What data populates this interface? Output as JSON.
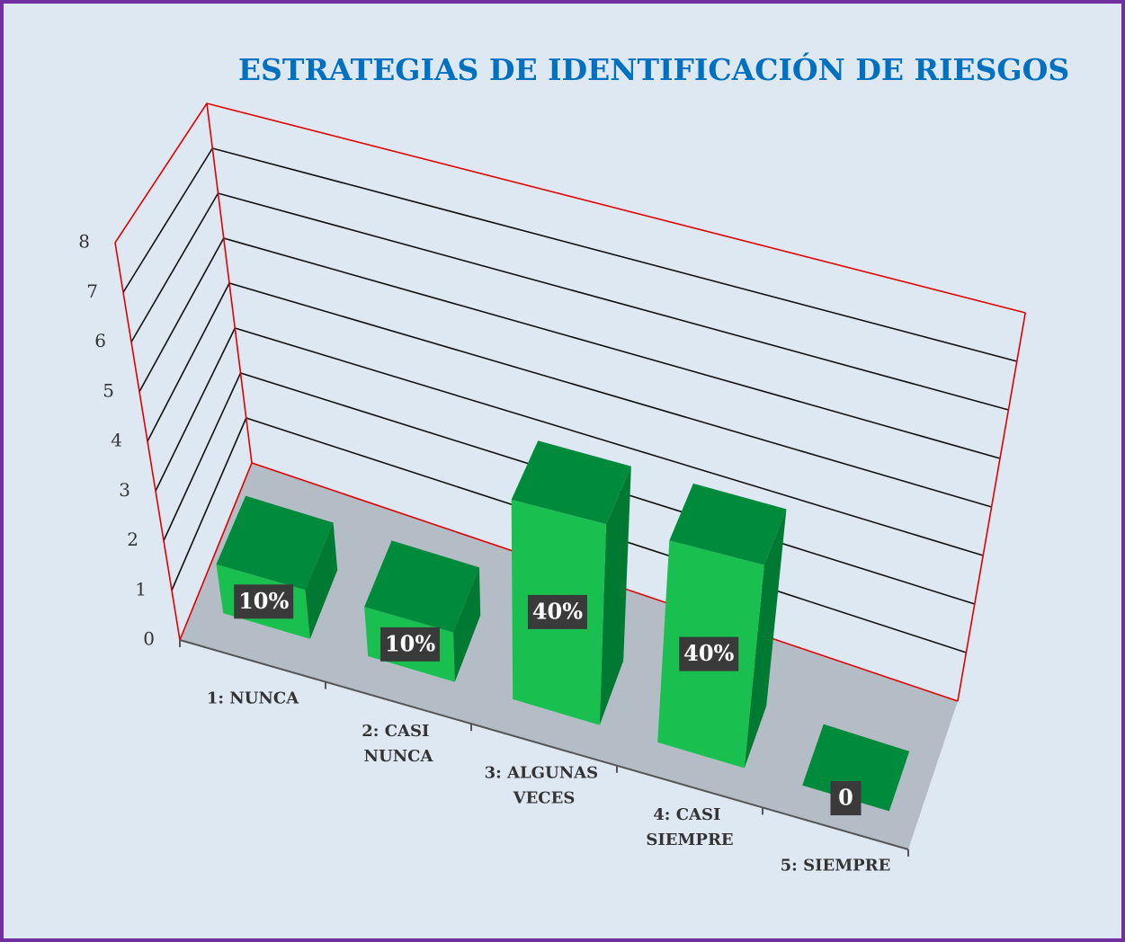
{
  "chart_data": {
    "type": "bar3d",
    "title": "ESTRATEGIAS DE IDENTIFICACIÓN DE RIESGOS",
    "categories": [
      "1: NUNCA",
      "2: CASI NUNCA",
      "3: ALGUNAS VECES",
      "4: CASI SIEMPRE",
      "5: SIEMPRE"
    ],
    "values": [
      1,
      1,
      4,
      4,
      0
    ],
    "value_labels": [
      "10%",
      "10%",
      "40%",
      "40%",
      "0"
    ],
    "color": "#19c050",
    "ylim": [
      0,
      8
    ],
    "yticks": [
      0,
      1,
      2,
      3,
      4,
      5,
      6,
      7,
      8
    ],
    "grid": true
  }
}
